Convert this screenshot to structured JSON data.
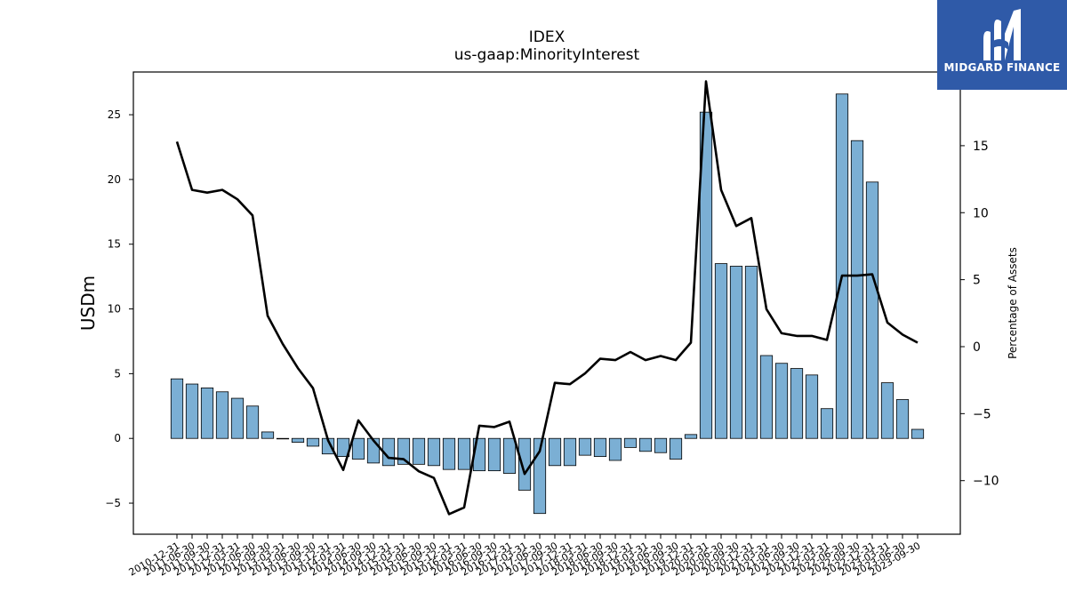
{
  "chart_data": {
    "type": "bar",
    "title": "IDEX",
    "subtitle": "us-gaap:MinorityInterest",
    "ylabel": "USDm",
    "y2label": "Percentage of Assets",
    "ylim": [
      -7.4,
      28.3
    ],
    "y2lim": [
      -14.0,
      20.5
    ],
    "yticks": [
      -5,
      0,
      5,
      10,
      15,
      20,
      25
    ],
    "y2ticks": [
      -10,
      -5,
      0,
      5,
      10,
      15
    ],
    "grid": false,
    "categories": [
      "2010-12-31",
      "2011-06-30",
      "2011-09-30",
      "2011-12-31",
      "2012-03-31",
      "2012-06-30",
      "2012-09-30",
      "2013-03-31",
      "2013-06-30",
      "2013-09-30",
      "2013-12-31",
      "2014-03-31",
      "2014-06-30",
      "2014-09-30",
      "2014-12-31",
      "2015-03-31",
      "2015-06-30",
      "2015-09-30",
      "2015-12-31",
      "2016-03-31",
      "2016-06-30",
      "2016-09-30",
      "2016-12-31",
      "2017-03-31",
      "2017-06-30",
      "2017-09-30",
      "2017-12-31",
      "2018-03-31",
      "2018-06-30",
      "2018-09-30",
      "2018-12-31",
      "2019-03-31",
      "2019-06-30",
      "2019-09-30",
      "2019-12-31",
      "2020-03-31",
      "2020-06-30",
      "2020-09-30",
      "2020-12-31",
      "2021-03-31",
      "2021-06-30",
      "2021-09-30",
      "2021-12-31",
      "2022-03-31",
      "2022-06-30",
      "2022-09-30",
      "2022-12-31",
      "2023-03-31",
      "2023-06-30",
      "2023-09-30"
    ],
    "series": [
      {
        "type": "bar",
        "axis": "left",
        "color": "#7bafd4",
        "values": [
          4.6,
          4.2,
          3.9,
          3.6,
          3.1,
          2.5,
          0.5,
          0.0,
          -0.3,
          -0.6,
          -1.2,
          -1.4,
          -1.6,
          -1.9,
          -2.1,
          -2.0,
          -2.0,
          -2.1,
          -2.4,
          -2.4,
          -2.5,
          -2.5,
          -2.7,
          -4.0,
          -5.8,
          -2.1,
          -2.1,
          -1.3,
          -1.4,
          -1.7,
          -0.7,
          -1.0,
          -1.1,
          -1.6,
          0.3,
          25.2,
          13.5,
          13.3,
          13.3,
          6.4,
          5.8,
          5.4,
          4.9,
          2.3,
          26.6,
          23.0,
          19.8,
          4.3,
          3.0,
          0.7
        ]
      },
      {
        "type": "line",
        "axis": "right",
        "color": "#000000",
        "values": [
          15.3,
          11.7,
          11.5,
          11.7,
          11.0,
          9.8,
          2.3,
          0.2,
          -1.6,
          -3.1,
          -7.0,
          -9.2,
          -5.5,
          -7.0,
          -8.3,
          -8.4,
          -9.3,
          -9.8,
          -12.5,
          -12.0,
          -5.9,
          -6.0,
          -5.6,
          -9.5,
          -7.8,
          -2.7,
          -2.8,
          -2.0,
          -0.9,
          -1.0,
          -0.4,
          -1.0,
          -0.7,
          -1.0,
          0.3,
          19.8,
          11.7,
          9.0,
          9.6,
          2.8,
          1.0,
          0.8,
          0.8,
          0.5,
          5.3,
          5.3,
          5.4,
          1.8,
          0.9,
          0.3
        ]
      }
    ]
  },
  "logo": {
    "text": "MIDGARD FINANCE"
  }
}
